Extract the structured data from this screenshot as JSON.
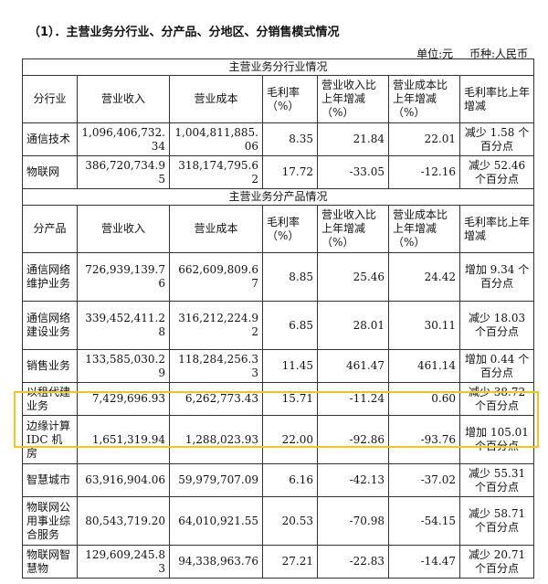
{
  "heading": "（1）．主营业务分行业、分产品、分地区、分销售模式情况",
  "unit": {
    "label": "单位:元",
    "currency": "币种:人民币"
  },
  "industry_section": {
    "title": "主营业务分行业情况",
    "headers": [
      "分行业",
      "营业收入",
      "营业成本",
      "毛利率（%）",
      "营业收入比上年增减（%）",
      "营业成本比上年增减（%）",
      "毛利率比上年增减"
    ],
    "rows": [
      [
        "通信技术",
        "1,096,406,732.34",
        "1,004,811,885.06",
        "8.35",
        "21.84",
        "22.01",
        "减少 1.58 个百分点"
      ],
      [
        "物联网",
        "386,720,734.95",
        "318,174,795.62",
        "17.72",
        "-33.05",
        "-12.16",
        "减少 52.46 个百分点"
      ]
    ]
  },
  "product_section": {
    "title": "主营业务分产品情况",
    "headers": [
      "分产品",
      "营业收入",
      "营业成本",
      "毛利率（%）",
      "营业收入比上年增减（%）",
      "营业成本比上年增减（%）",
      "毛利率比上年增减"
    ],
    "rows": [
      [
        "通信网络维护业务",
        "726,939,139.76",
        "662,609,809.67",
        "8.85",
        "25.46",
        "24.42",
        "增加 9.34 个百分点"
      ],
      [
        "通信网络建设业务",
        "339,452,411.28",
        "316,212,224.92",
        "6.85",
        "28.01",
        "30.11",
        "减少 18.03 个百分点"
      ],
      [
        "销售业务",
        "133,585,030.29",
        "118,284,256.33",
        "11.45",
        "461.47",
        "461.14",
        "增加 0.44 个百分点"
      ],
      [
        "以租代建业务",
        "7,429,696.93",
        "6,262,773.43",
        "15.71",
        "-11.24",
        "0.60",
        "减少 38.72 个百分点"
      ],
      [
        "边缘计算 IDC 机房",
        "1,651,319.94",
        "1,288,023.93",
        "22.00",
        "-92.86",
        "-93.76",
        "增加 105.01 个百分点"
      ],
      [
        "智慧城市",
        "63,916,904.06",
        "59,979,707.09",
        "6.16",
        "-42.13",
        "-37.02",
        "减少 55.31 个百分点"
      ],
      [
        "物联网公用事业综合服务",
        "80,543,719.20",
        "64,010,921.55",
        "20.53",
        "-70.98",
        "-54.15",
        "减少 58.71 个百分点"
      ],
      [
        "物联网智慧物",
        "129,609,245.83",
        "94,338,963.76",
        "27.21",
        "-22.83",
        "-14.47",
        "减少 20.71 个百分点"
      ]
    ]
  },
  "highlight": {
    "row": "边缘计算 IDC 机房",
    "color": "#f5c518"
  }
}
